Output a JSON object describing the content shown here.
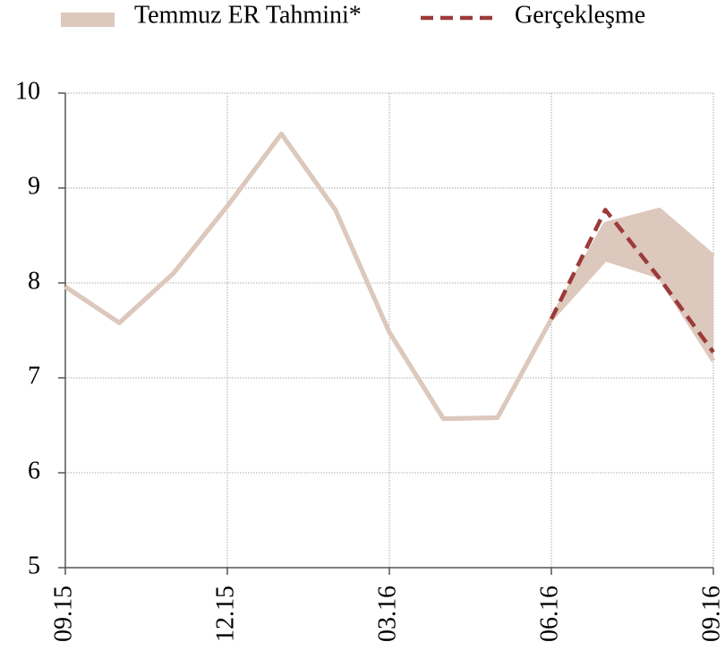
{
  "chart_data": {
    "type": "line",
    "categories": [
      "09.15",
      null,
      null,
      "12.15",
      null,
      null,
      "03.16",
      null,
      null,
      "06.16",
      null,
      null,
      "09.16"
    ],
    "series": [
      {
        "name": "Temmuz ER Tahmini*",
        "color": "#dcc8bc",
        "lower": [
          7.96,
          7.58,
          8.1,
          8.81,
          9.57,
          8.77,
          7.48,
          6.57,
          6.58,
          7.62,
          8.25,
          8.07,
          7.18
        ],
        "upper": [
          7.96,
          7.58,
          8.1,
          8.81,
          9.57,
          8.77,
          7.48,
          6.57,
          6.58,
          7.62,
          8.62,
          8.77,
          8.28
        ]
      },
      {
        "name": "Gerçekleşme",
        "color": "#9c3a3a",
        "dashed": true,
        "values": [
          null,
          null,
          null,
          null,
          null,
          null,
          null,
          null,
          null,
          7.62,
          8.77,
          8.05,
          7.27
        ]
      }
    ],
    "ylim": [
      5,
      10
    ],
    "yticks": [
      5,
      6,
      7,
      8,
      9,
      10
    ],
    "grid": true
  }
}
